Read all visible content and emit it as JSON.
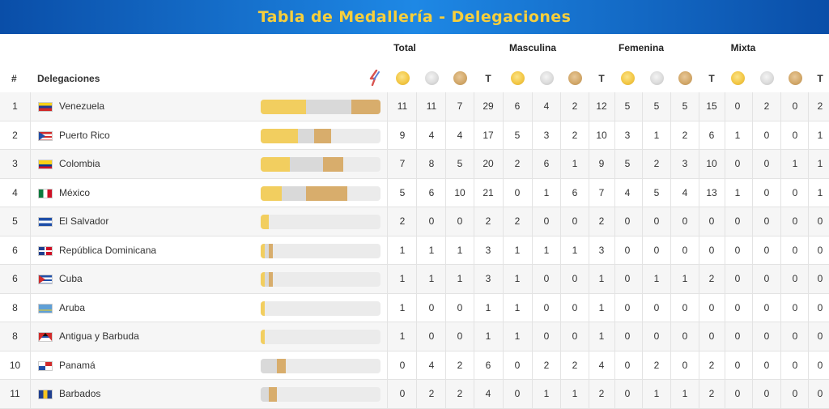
{
  "header": {
    "title": "Tabla de Medallería - Delegaciones"
  },
  "groups": {
    "total": "Total",
    "male": "Masculina",
    "female": "Femenina",
    "mixed": "Mixta"
  },
  "columns": {
    "rank": "#",
    "delegation": "Delegaciones",
    "t": "T"
  },
  "icons": {
    "sort": "sort-arrows-icon",
    "gold": "gold-medal-icon",
    "silver": "silver-medal-icon",
    "bronze": "bronze-medal-icon"
  },
  "colors": {
    "banner": "#1e88e5",
    "title": "#f7cf3c",
    "gold": "#f2ce5f",
    "silver": "#d9d9d9",
    "bronze": "#d8ad6c"
  },
  "rows": [
    {
      "rank": "1",
      "name": "Venezuela",
      "flag": "ven",
      "total": [
        "11",
        "11",
        "7",
        "29"
      ],
      "male": [
        "6",
        "4",
        "2",
        "12"
      ],
      "female": [
        "5",
        "5",
        "5",
        "15"
      ],
      "mixed": [
        "0",
        "2",
        "0",
        "2"
      ]
    },
    {
      "rank": "2",
      "name": "Puerto Rico",
      "flag": "pur",
      "total": [
        "9",
        "4",
        "4",
        "17"
      ],
      "male": [
        "5",
        "3",
        "2",
        "10"
      ],
      "female": [
        "3",
        "1",
        "2",
        "6"
      ],
      "mixed": [
        "1",
        "0",
        "0",
        "1"
      ]
    },
    {
      "rank": "3",
      "name": "Colombia",
      "flag": "col",
      "total": [
        "7",
        "8",
        "5",
        "20"
      ],
      "male": [
        "2",
        "6",
        "1",
        "9"
      ],
      "female": [
        "5",
        "2",
        "3",
        "10"
      ],
      "mixed": [
        "0",
        "0",
        "1",
        "1"
      ]
    },
    {
      "rank": "4",
      "name": "México",
      "flag": "mex",
      "total": [
        "5",
        "6",
        "10",
        "21"
      ],
      "male": [
        "0",
        "1",
        "6",
        "7"
      ],
      "female": [
        "4",
        "5",
        "4",
        "13"
      ],
      "mixed": [
        "1",
        "0",
        "0",
        "1"
      ]
    },
    {
      "rank": "5",
      "name": "El Salvador",
      "flag": "slv",
      "total": [
        "2",
        "0",
        "0",
        "2"
      ],
      "male": [
        "2",
        "0",
        "0",
        "2"
      ],
      "female": [
        "0",
        "0",
        "0",
        "0"
      ],
      "mixed": [
        "0",
        "0",
        "0",
        "0"
      ]
    },
    {
      "rank": "6",
      "name": "República Dominicana",
      "flag": "dom",
      "total": [
        "1",
        "1",
        "1",
        "3"
      ],
      "male": [
        "1",
        "1",
        "1",
        "3"
      ],
      "female": [
        "0",
        "0",
        "0",
        "0"
      ],
      "mixed": [
        "0",
        "0",
        "0",
        "0"
      ]
    },
    {
      "rank": "6",
      "name": "Cuba",
      "flag": "cub",
      "total": [
        "1",
        "1",
        "1",
        "3"
      ],
      "male": [
        "1",
        "0",
        "0",
        "1"
      ],
      "female": [
        "0",
        "1",
        "1",
        "2"
      ],
      "mixed": [
        "0",
        "0",
        "0",
        "0"
      ]
    },
    {
      "rank": "8",
      "name": "Aruba",
      "flag": "abw",
      "total": [
        "1",
        "0",
        "0",
        "1"
      ],
      "male": [
        "1",
        "0",
        "0",
        "1"
      ],
      "female": [
        "0",
        "0",
        "0",
        "0"
      ],
      "mixed": [
        "0",
        "0",
        "0",
        "0"
      ]
    },
    {
      "rank": "8",
      "name": "Antigua y Barbuda",
      "flag": "atg",
      "total": [
        "1",
        "0",
        "0",
        "1"
      ],
      "male": [
        "1",
        "0",
        "0",
        "1"
      ],
      "female": [
        "0",
        "0",
        "0",
        "0"
      ],
      "mixed": [
        "0",
        "0",
        "0",
        "0"
      ]
    },
    {
      "rank": "10",
      "name": "Panamá",
      "flag": "pan",
      "total": [
        "0",
        "4",
        "2",
        "6"
      ],
      "male": [
        "0",
        "2",
        "2",
        "4"
      ],
      "female": [
        "0",
        "2",
        "0",
        "2"
      ],
      "mixed": [
        "0",
        "0",
        "0",
        "0"
      ]
    },
    {
      "rank": "11",
      "name": "Barbados",
      "flag": "brb",
      "total": [
        "0",
        "2",
        "2",
        "4"
      ],
      "male": [
        "0",
        "1",
        "1",
        "2"
      ],
      "female": [
        "0",
        "1",
        "1",
        "2"
      ],
      "mixed": [
        "0",
        "0",
        "0",
        "0"
      ]
    }
  ]
}
